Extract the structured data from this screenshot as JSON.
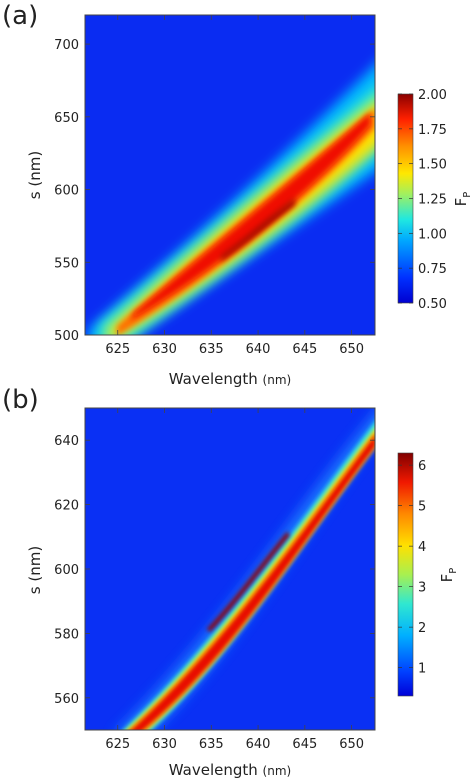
{
  "chart_data": [
    {
      "type": "heatmap",
      "panel_label": "(a)",
      "xlabel": "Wavelength",
      "xunit": "(nm)",
      "ylabel": "s (nm)",
      "colorbar_label": "F",
      "colorbar_sub": "P",
      "xlim": [
        621.5,
        652.5
      ],
      "ylim": [
        500,
        720
      ],
      "xticks": [
        625,
        630,
        635,
        640,
        645,
        650
      ],
      "yticks": [
        500,
        550,
        600,
        650,
        700
      ],
      "clim": [
        0.5,
        2.0
      ],
      "cticks": [
        "0.50",
        "0.75",
        "1.00",
        "1.25",
        "1.50",
        "1.75",
        "2.00"
      ],
      "colormap": "jet",
      "ridge": [
        {
          "x": 627,
          "y": 500,
          "value": 1.5
        },
        {
          "x": 630,
          "y": 520,
          "value": 1.75
        },
        {
          "x": 635,
          "y": 550,
          "value": 1.9
        },
        {
          "x": 640,
          "y": 580,
          "value": 2.0
        },
        {
          "x": 645,
          "y": 605,
          "value": 1.9
        },
        {
          "x": 650,
          "y": 630,
          "value": 1.75
        },
        {
          "x": 652,
          "y": 640,
          "value": 1.6
        }
      ],
      "background_value": 0.55
    },
    {
      "type": "heatmap",
      "panel_label": "(b)",
      "xlabel": "Wavelength",
      "xunit": "(nm)",
      "ylabel": "s (nm)",
      "colorbar_label": "F",
      "colorbar_sub": "P",
      "xlim": [
        621.5,
        652.5
      ],
      "ylim": [
        550,
        650
      ],
      "xticks": [
        625,
        630,
        635,
        640,
        645,
        650
      ],
      "yticks": [
        560,
        580,
        600,
        620,
        640
      ],
      "clim": [
        0.3,
        6.3
      ],
      "cticks": [
        "1",
        "2",
        "3",
        "4",
        "5",
        "6"
      ],
      "colormap": "jet",
      "ridge": [
        {
          "x": 628.5,
          "y": 550,
          "value": 5.5
        },
        {
          "x": 635,
          "y": 575,
          "value": 5.8
        },
        {
          "x": 640,
          "y": 593,
          "value": 6.0
        },
        {
          "x": 645,
          "y": 612,
          "value": 5.9
        },
        {
          "x": 652,
          "y": 637,
          "value": 5.5
        }
      ],
      "background_value": 0.6
    }
  ]
}
